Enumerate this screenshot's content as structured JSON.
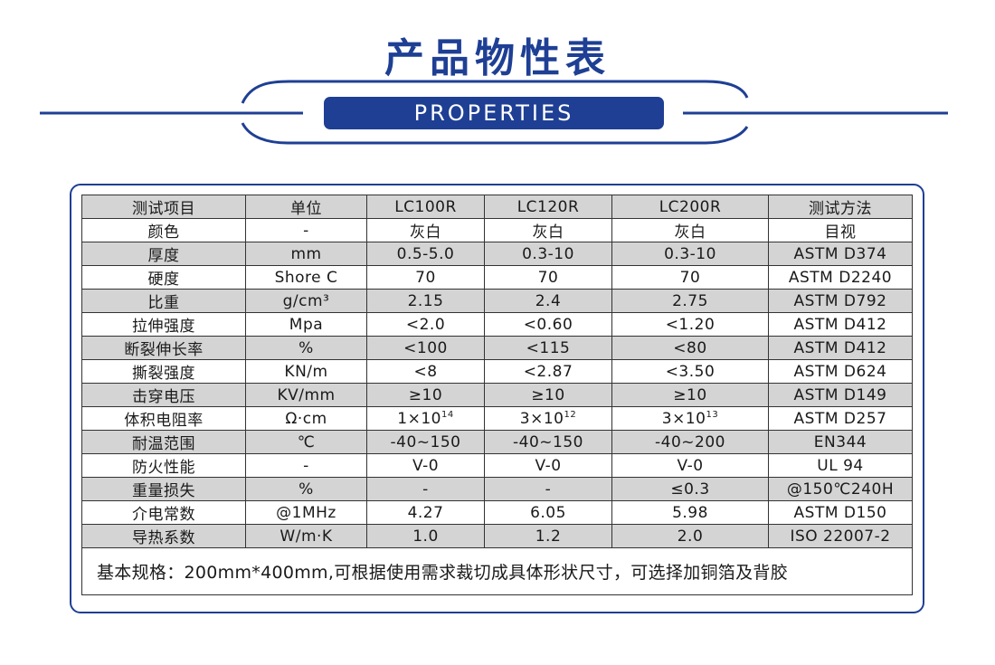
{
  "page": {
    "title": "产品物性表",
    "subtitle": "PROPERTIES",
    "colors": {
      "brand": "#1e3f94",
      "row_shade": "#d4d4d4",
      "border": "#333333"
    }
  },
  "table": {
    "header": [
      "测试项目",
      "单位",
      "LC100R",
      "LC120R",
      "LC200R",
      "测试方法"
    ],
    "rows": [
      [
        "颜色",
        "-",
        "灰白",
        "灰白",
        "灰白",
        "目视"
      ],
      [
        "厚度",
        "mm",
        "0.5-5.0",
        "0.3-10",
        "0.3-10",
        "ASTM D374"
      ],
      [
        "硬度",
        "Shore C",
        "70",
        "70",
        "70",
        "ASTM D2240"
      ],
      [
        "比重",
        "g/cm³",
        "2.15",
        "2.4",
        "2.75",
        "ASTM D792"
      ],
      [
        "拉伸强度",
        "Mpa",
        "<2.0",
        "<0.60",
        "<1.20",
        "ASTM D412"
      ],
      [
        "断裂伸长率",
        "%",
        "<100",
        "<115",
        "<80",
        "ASTM D412"
      ],
      [
        "撕裂强度",
        "KN/m",
        "<8",
        "<2.87",
        "<3.50",
        "ASTM D624"
      ],
      [
        "击穿电压",
        "KV/mm",
        "≥10",
        "≥10",
        "≥10",
        "ASTM D149"
      ],
      [
        "体积电阻率",
        "Ω·cm",
        {
          "base": "1×10",
          "exp": "14"
        },
        {
          "base": "3×10",
          "exp": "12"
        },
        {
          "base": "3×10",
          "exp": "13"
        },
        "ASTM D257"
      ],
      [
        "耐温范围",
        "℃",
        "-40~150",
        "-40~150",
        "-40~200",
        "EN344"
      ],
      [
        "防火性能",
        "-",
        "V-0",
        "V-0",
        "V-0",
        "UL 94"
      ],
      [
        "重量损失",
        "%",
        "-",
        "-",
        "≤0.3",
        "@150℃240H"
      ],
      [
        "介电常数",
        "@1MHz",
        "4.27",
        "6.05",
        "5.98",
        "ASTM D150"
      ],
      [
        "导热系数",
        "W/m·K",
        "1.0",
        "1.2",
        "2.0",
        "ISO 22007-2"
      ]
    ],
    "footnote": "基本规格：200mm*400mm,可根据使用需求裁切成具体形状尺寸，可选择加铜箔及背胶"
  }
}
